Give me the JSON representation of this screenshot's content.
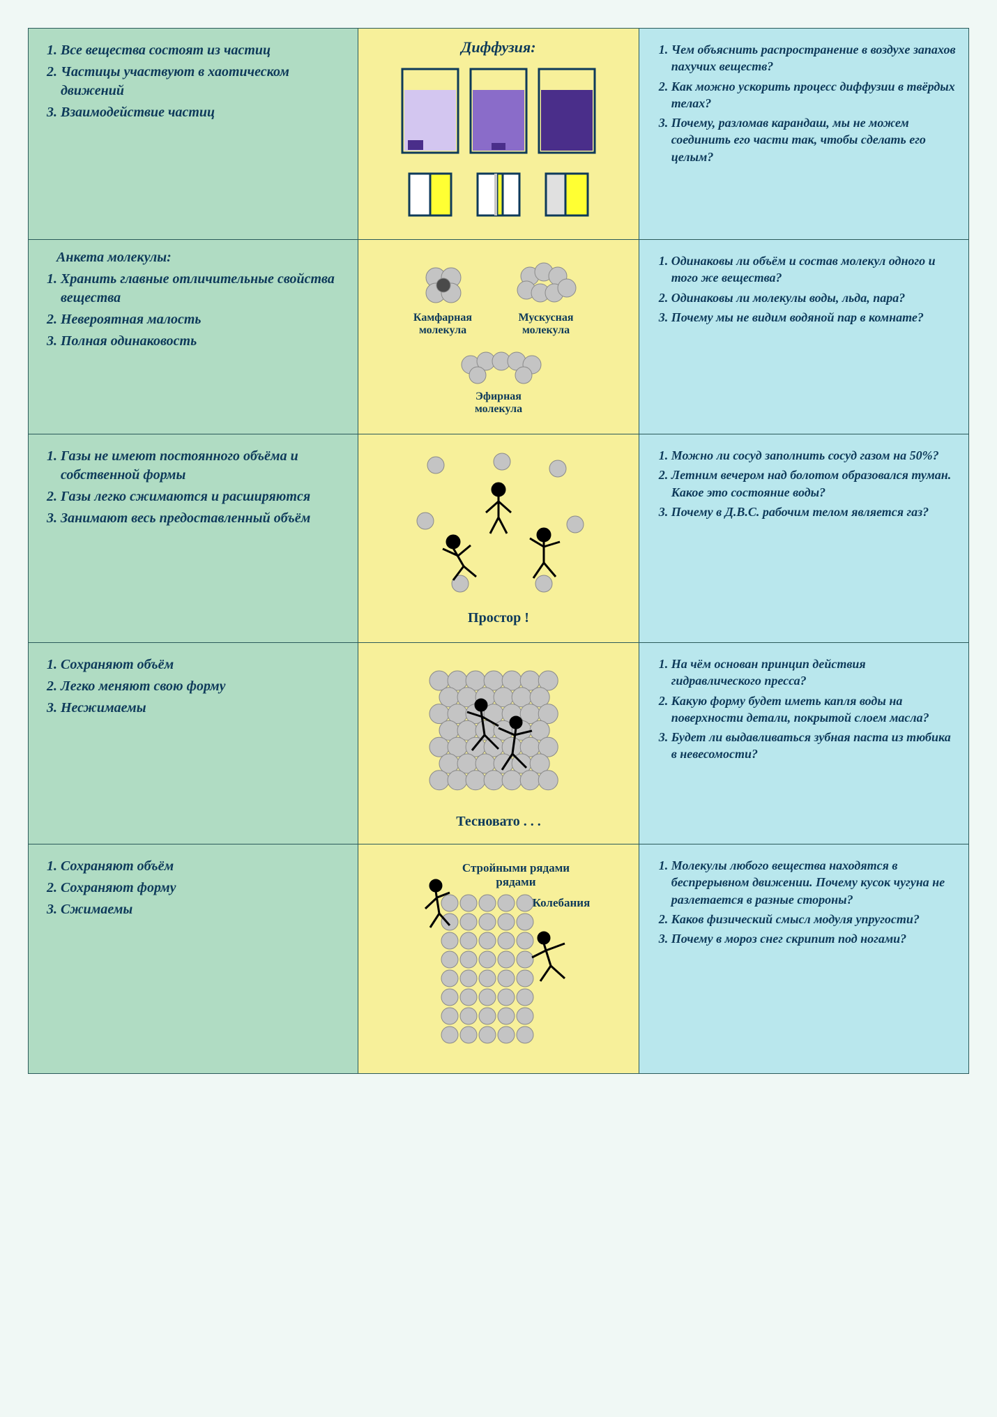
{
  "colors": {
    "left_bg": "#b0dcc3",
    "mid_bg": "#f7f09a",
    "right_bg": "#b9e7ed",
    "text": "#0e3a5a",
    "border": "#2a5a5a",
    "mol_gray": "#c4c4c4",
    "mol_gray_stroke": "#8a8a8a",
    "purple1": "#d3c6f0",
    "purple2": "#8a6cc9",
    "purple3": "#4a2e8a",
    "yellow": "#ffff33",
    "white": "#ffffff"
  },
  "rows": [
    {
      "left_items": [
        "Все вещества состоят из частиц",
        "Частицы участвуют в хаотическом движений",
        "Взаимодействие частиц"
      ],
      "mid_title": "Диффузия:",
      "right_items": [
        "Чем объяснить распространение в воздухе запахов пахучих веществ?",
        "Как можно ускорить процесс диффузии в твёрдых телах?",
        "Почему, разломав карандаш, мы не можем соединить его части так, чтобы сделать его целым?"
      ]
    },
    {
      "left_pretitle": "Анкета молекулы:",
      "left_items": [
        "Хранить главные отличительные свойства вещества",
        "Невероятная малость",
        "Полная одинаковость"
      ],
      "mid_labels": {
        "a": "Камфарная молекула",
        "b": "Мускусная молекула",
        "c": "Эфирная молекула"
      },
      "right_items": [
        "Одинаковы ли объём и состав молекул одного и того же вещества?",
        "Одинаковы ли молекулы воды, льда, пара?",
        "Почему мы не видим водяной пар в комнате?"
      ]
    },
    {
      "left_items": [
        "Газы не имеют постоянного объёма и собственной формы",
        "Газы легко сжимаются и расширяются",
        "Занимают весь предоставленный объём"
      ],
      "mid_caption": "Простор !",
      "right_items": [
        "Можно ли сосуд заполнить сосуд газом на 50%?",
        "Летним вечером над болотом образовался туман. Какое это состояние воды?",
        "Почему в Д.В.С. рабочим телом является газ?"
      ]
    },
    {
      "left_items": [
        "Сохраняют объём",
        "Легко меняют свою форму",
        "Несжимаемы"
      ],
      "mid_caption": "Тесновато . . .",
      "right_items": [
        "На чём основан принцип действия гидравлического пресса?",
        "Какую форму будет иметь капля воды на поверхности детали, покрытой слоем масла?",
        "Будет ли выдавливаться зубная паста из тюбика в невесомости?"
      ]
    },
    {
      "left_items": [
        "Сохраняют объём",
        "Сохраняют форму",
        "Сжимаемы"
      ],
      "mid_labels": {
        "a": "Стройными рядами",
        "b": "Колебания"
      },
      "right_items": [
        "Молекулы любого вещества находятся в беспрерывном движении. Почему кусок чугуна не разлетается в разные стороны?",
        "Каков физический смысл модуля упругости?",
        "Почему в мороз снег скрипит под ногами?"
      ]
    }
  ]
}
